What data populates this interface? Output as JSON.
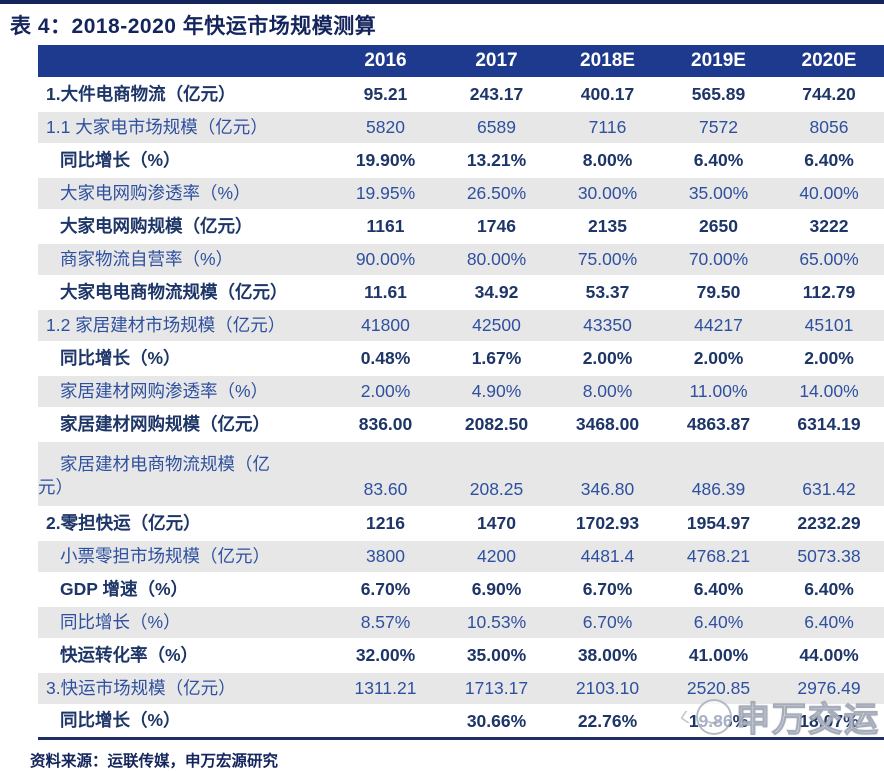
{
  "page": {
    "title": "表 4：2018-2020 年快运市场规模测算",
    "source_note": "资料来源：运联传媒，申万宏源研究",
    "watermark": "申万交运"
  },
  "colors": {
    "header_bg": "#1e3a8f",
    "shaded_row_bg": "#e7e7e7",
    "plain_row_text": "#1d3567",
    "shaded_row_text": "#2e509f",
    "rule_navy": "#13255c"
  },
  "table": {
    "columns": [
      "2016",
      "2017",
      "2018E",
      "2019E",
      "2020E"
    ],
    "rows": [
      {
        "label": "1.大件电商物流（亿元）",
        "values": [
          "95.21",
          "243.17",
          "400.17",
          "565.89",
          "744.20"
        ],
        "shaded": false,
        "indent": 0
      },
      {
        "label": "1.1 大家电市场规模（亿元）",
        "values": [
          "5820",
          "6589",
          "7116",
          "7572",
          "8056"
        ],
        "shaded": true,
        "indent": 0
      },
      {
        "label": "同比增长（%）",
        "values": [
          "19.90%",
          "13.21%",
          "8.00%",
          "6.40%",
          "6.40%"
        ],
        "shaded": false,
        "indent": 1
      },
      {
        "label": "大家电网购渗透率（%）",
        "values": [
          "19.95%",
          "26.50%",
          "30.00%",
          "35.00%",
          "40.00%"
        ],
        "shaded": true,
        "indent": 1
      },
      {
        "label": "大家电网购规模（亿元）",
        "values": [
          "1161",
          "1746",
          "2135",
          "2650",
          "3222"
        ],
        "shaded": false,
        "indent": 1
      },
      {
        "label": "商家物流自营率（%）",
        "values": [
          "90.00%",
          "80.00%",
          "75.00%",
          "70.00%",
          "65.00%"
        ],
        "shaded": true,
        "indent": 1
      },
      {
        "label": "大家电电商物流规模（亿元）",
        "values": [
          "11.61",
          "34.92",
          "53.37",
          "79.50",
          "112.79"
        ],
        "shaded": false,
        "indent": 1
      },
      {
        "label": "1.2 家居建材市场规模（亿元）",
        "values": [
          "41800",
          "42500",
          "43350",
          "44217",
          "45101"
        ],
        "shaded": true,
        "indent": 0
      },
      {
        "label": "同比增长（%）",
        "values": [
          "0.48%",
          "1.67%",
          "2.00%",
          "2.00%",
          "2.00%"
        ],
        "shaded": false,
        "indent": 1
      },
      {
        "label": "家居建材网购渗透率（%）",
        "values": [
          "2.00%",
          "4.90%",
          "8.00%",
          "11.00%",
          "14.00%"
        ],
        "shaded": true,
        "indent": 1
      },
      {
        "label": "家居建材网购规模（亿元）",
        "values": [
          "836.00",
          "2082.50",
          "3468.00",
          "4863.87",
          "6314.19"
        ],
        "shaded": false,
        "indent": 1
      },
      {
        "label": "家居建材电商物流规模（亿\n元）",
        "values": [
          "83.60",
          "208.25",
          "346.80",
          "486.39",
          "631.42"
        ],
        "shaded": true,
        "indent": 1,
        "tall": true
      },
      {
        "label": "2.零担快运（亿元）",
        "values": [
          "1216",
          "1470",
          "1702.93",
          "1954.97",
          "2232.29"
        ],
        "shaded": false,
        "indent": 0
      },
      {
        "label": "小票零担市场规模（亿元）",
        "values": [
          "3800",
          "4200",
          "4481.4",
          "4768.21",
          "5073.38"
        ],
        "shaded": true,
        "indent": 1
      },
      {
        "label": "GDP 增速（%）",
        "values": [
          "6.70%",
          "6.90%",
          "6.70%",
          "6.40%",
          "6.40%"
        ],
        "shaded": false,
        "indent": 1
      },
      {
        "label": "同比增长（%）",
        "values": [
          "8.57%",
          "10.53%",
          "6.70%",
          "6.40%",
          "6.40%"
        ],
        "shaded": true,
        "indent": 1
      },
      {
        "label": "快运转化率（%）",
        "values": [
          "32.00%",
          "35.00%",
          "38.00%",
          "41.00%",
          "44.00%"
        ],
        "shaded": false,
        "indent": 1
      },
      {
        "label": "3.快运市场规模（亿元）",
        "values": [
          "1311.21",
          "1713.17",
          "2103.10",
          "2520.85",
          "2976.49"
        ],
        "shaded": true,
        "indent": 0
      },
      {
        "label": "同比增长（%）",
        "values": [
          "",
          "30.66%",
          "22.76%",
          "19.86%",
          "18.07%"
        ],
        "shaded": false,
        "indent": 1
      }
    ]
  }
}
